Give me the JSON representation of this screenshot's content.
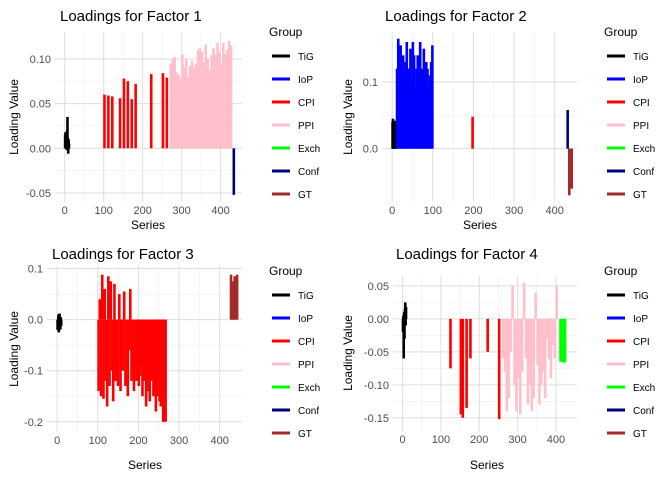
{
  "chart_data": [
    {
      "type": "bar",
      "title": "Loadings for Factor 1",
      "xlabel": "Series",
      "ylabel": "Loading Value",
      "xlim": [
        -25,
        455
      ],
      "ylim": [
        -0.06,
        0.13
      ],
      "xticks": [
        0,
        100,
        200,
        300,
        400
      ],
      "xtick_labels": [
        "0",
        "100",
        "200",
        "300",
        "400"
      ],
      "yticks": [
        -0.05,
        0,
        0.05,
        0.1
      ],
      "ytick_labels": [
        "-0.05",
        "0.00",
        "0.05",
        "0.10"
      ],
      "legend_title": "Group",
      "legend_position": "right",
      "bars": [
        {
          "group": "TiG",
          "x": [
            1,
            2,
            3,
            4,
            5,
            6,
            7,
            8,
            9,
            10,
            11
          ],
          "y": [
            0.015,
            0.018,
            0.008,
            0.012,
            -0.002,
            0.02,
            0.035,
            0.012,
            -0.006,
            0.01,
            0.005
          ]
        },
        {
          "group": "CPI",
          "x": [
            102,
            112,
            122,
            142,
            152,
            162,
            172,
            182,
            222,
            252,
            262
          ],
          "y": [
            0.06,
            0.059,
            0.058,
            0.056,
            0.078,
            0.075,
            0.055,
            0.072,
            0.083,
            0.084,
            0.079
          ]
        },
        {
          "group": "PPI",
          "x": [
            272,
            277,
            282,
            287,
            292,
            297,
            302,
            307,
            312,
            317,
            322,
            327,
            332,
            337,
            342,
            347,
            352,
            357,
            362,
            367,
            372,
            377,
            382,
            387,
            392,
            397,
            402,
            407,
            412,
            417,
            422,
            427
          ],
          "y": [
            0.095,
            0.1,
            0.102,
            0.085,
            0.082,
            0.078,
            0.105,
            0.09,
            0.1,
            0.08,
            0.092,
            0.098,
            0.09,
            0.094,
            0.11,
            0.112,
            0.108,
            0.096,
            0.116,
            0.1,
            0.088,
            0.104,
            0.112,
            0.105,
            0.118,
            0.108,
            0.095,
            0.118,
            0.105,
            0.11,
            0.12,
            0.115
          ]
        },
        {
          "group": "Conf",
          "x": [
            434
          ],
          "y": [
            -0.052
          ]
        }
      ]
    },
    {
      "type": "bar",
      "title": "Loadings for Factor 2",
      "xlabel": "Series",
      "ylabel": "Loading Value",
      "xlim": [
        -25,
        455
      ],
      "ylim": [
        -0.08,
        0.175
      ],
      "xticks": [
        0,
        100,
        200,
        300,
        400
      ],
      "xtick_labels": [
        "0",
        "100",
        "200",
        "300",
        "400"
      ],
      "yticks": [
        0,
        0.1
      ],
      "ytick_labels": [
        "0.0",
        "0.1"
      ],
      "legend_title": "Group",
      "legend_position": "right",
      "bars": [
        {
          "group": "TiG",
          "x": [
            1,
            2,
            3,
            4,
            5,
            6,
            7,
            8,
            9,
            10
          ],
          "y": [
            0.04,
            0.045,
            0.03,
            0.02,
            0.035,
            0.042,
            0.028,
            0.025,
            0.038,
            0.03
          ]
        },
        {
          "group": "IoP",
          "x": [
            12,
            15,
            18,
            21,
            24,
            27,
            30,
            33,
            36,
            39,
            42,
            45,
            48,
            51,
            54,
            57,
            60,
            63,
            66,
            69,
            72,
            75,
            78,
            81,
            84,
            87,
            90,
            93,
            96,
            99
          ],
          "y": [
            0.12,
            0.165,
            0.09,
            0.155,
            0.08,
            0.14,
            0.11,
            0.13,
            0.16,
            0.09,
            0.12,
            0.15,
            0.1,
            0.16,
            0.14,
            0.09,
            0.12,
            0.14,
            0.13,
            0.16,
            0.08,
            0.12,
            0.15,
            0.1,
            0.13,
            0.12,
            0.09,
            0.11,
            0.13,
            0.155
          ]
        },
        {
          "group": "CPI",
          "x": [
            198
          ],
          "y": [
            0.048
          ]
        },
        {
          "group": "Conf",
          "x": [
            432
          ],
          "y": [
            0.058
          ]
        },
        {
          "group": "GT",
          "x": [
            436,
            438,
            440,
            442
          ],
          "y": [
            -0.07,
            -0.05,
            -0.04,
            -0.06
          ]
        }
      ]
    },
    {
      "type": "bar",
      "title": "Loadings for Factor 3",
      "xlabel": "Series",
      "ylabel": "Loading Value",
      "xlim": [
        -25,
        455
      ],
      "ylim": [
        -0.22,
        0.105
      ],
      "xticks": [
        0,
        100,
        200,
        300,
        400
      ],
      "xtick_labels": [
        "0",
        "100",
        "200",
        "300",
        "400"
      ],
      "yticks": [
        -0.2,
        -0.1,
        0,
        0.1
      ],
      "ytick_labels": [
        "-0.2",
        "-0.1",
        "0.0",
        "0.1"
      ],
      "legend_title": "Group",
      "legend_position": "right",
      "bars": [
        {
          "group": "TiG",
          "x": [
            1,
            2,
            3,
            4,
            5,
            6,
            7,
            8,
            9,
            10
          ],
          "y": [
            -0.02,
            -0.015,
            0.01,
            -0.025,
            -0.01,
            0.012,
            -0.02,
            -0.018,
            0.005,
            -0.012
          ]
        },
        {
          "group": "CPI",
          "x": [
            102,
            105,
            108,
            111,
            114,
            117,
            120,
            123,
            126,
            129,
            132,
            135,
            138,
            141,
            144,
            147,
            150,
            153,
            156,
            159,
            162,
            165,
            168,
            171,
            174,
            177,
            180,
            183,
            186,
            189,
            192,
            195,
            198,
            201,
            204,
            207,
            210,
            213,
            216,
            219,
            222,
            225,
            228,
            231,
            234,
            237,
            240,
            243,
            246,
            249,
            252,
            255,
            258,
            261,
            264,
            267
          ],
          "y": [
            -0.14,
            0.04,
            -0.15,
            0.088,
            -0.155,
            0.06,
            -0.12,
            -0.17,
            0.085,
            -0.13,
            0.075,
            -0.1,
            -0.16,
            0.07,
            -0.12,
            -0.11,
            -0.13,
            0.05,
            -0.14,
            -0.09,
            -0.1,
            0.055,
            -0.13,
            -0.08,
            -0.15,
            -0.06,
            0.06,
            -0.12,
            -0.09,
            -0.14,
            -0.1,
            -0.12,
            -0.07,
            -0.13,
            -0.11,
            -0.09,
            -0.15,
            -0.12,
            -0.1,
            -0.17,
            -0.14,
            -0.13,
            -0.16,
            -0.11,
            -0.12,
            -0.15,
            -0.14,
            -0.18,
            -0.15,
            -0.12,
            -0.16,
            -0.17,
            -0.13,
            -0.2,
            -0.19,
            -0.2
          ]
        },
        {
          "group": "GT",
          "x": [
            428,
            431,
            434,
            437,
            440,
            443
          ],
          "y": [
            0.088,
            0.07,
            0.075,
            0.085,
            0.06,
            0.088
          ]
        }
      ]
    },
    {
      "type": "bar",
      "title": "Loadings for Factor 4",
      "xlabel": "Series",
      "ylabel": "Loading Value",
      "xlim": [
        -25,
        455
      ],
      "ylim": [
        -0.17,
        0.065
      ],
      "xticks": [
        0,
        100,
        200,
        300,
        400
      ],
      "xtick_labels": [
        "0",
        "100",
        "200",
        "300",
        "400"
      ],
      "yticks": [
        -0.15,
        -0.1,
        -0.05,
        0,
        0.05
      ],
      "ytick_labels": [
        "-0.15",
        "-0.10",
        "-0.05",
        "0.00",
        "0.05"
      ],
      "legend_title": "Group",
      "legend_position": "right",
      "bars": [
        {
          "group": "TiG",
          "x": [
            1,
            2,
            3,
            4,
            5,
            6,
            7,
            8,
            9
          ],
          "y": [
            -0.02,
            0.005,
            -0.06,
            0.01,
            -0.03,
            0.015,
            0.025,
            -0.01,
            0.018
          ]
        },
        {
          "group": "CPI",
          "x": [
            125,
            152,
            157,
            167,
            177,
            222,
            252
          ],
          "y": [
            -0.075,
            -0.145,
            -0.15,
            -0.135,
            -0.06,
            -0.05,
            -0.152
          ]
        },
        {
          "group": "PPI",
          "x": [
            262,
            267,
            272,
            277,
            282,
            287,
            292,
            297,
            302,
            307,
            312,
            317,
            322,
            327,
            332,
            337,
            342,
            347,
            352,
            357,
            362,
            367,
            372,
            377,
            382,
            387,
            392,
            397,
            402
          ],
          "y": [
            -0.06,
            -0.08,
            -0.14,
            -0.12,
            -0.05,
            0.05,
            -0.1,
            -0.14,
            -0.09,
            -0.145,
            -0.08,
            0.055,
            -0.06,
            -0.13,
            -0.1,
            -0.14,
            -0.12,
            0.04,
            -0.07,
            -0.13,
            -0.1,
            -0.08,
            -0.12,
            -0.03,
            -0.06,
            -0.09,
            -0.04,
            -0.06,
            0.05
          ]
        },
        {
          "group": "Exch",
          "x": [
            412,
            415,
            418,
            421,
            424
          ],
          "y": [
            -0.065,
            -0.065,
            -0.066,
            -0.064,
            -0.066
          ]
        }
      ]
    }
  ],
  "groups": [
    {
      "name": "TiG",
      "color": "#000000"
    },
    {
      "name": "IoP",
      "color": "#0000ff"
    },
    {
      "name": "CPI",
      "color": "#ff0000"
    },
    {
      "name": "PPI",
      "color": "#ffc0cb"
    },
    {
      "name": "Exch",
      "color": "#00ff00"
    },
    {
      "name": "Conf",
      "color": "#000080"
    },
    {
      "name": "GT",
      "color": "#a52a2a"
    }
  ]
}
